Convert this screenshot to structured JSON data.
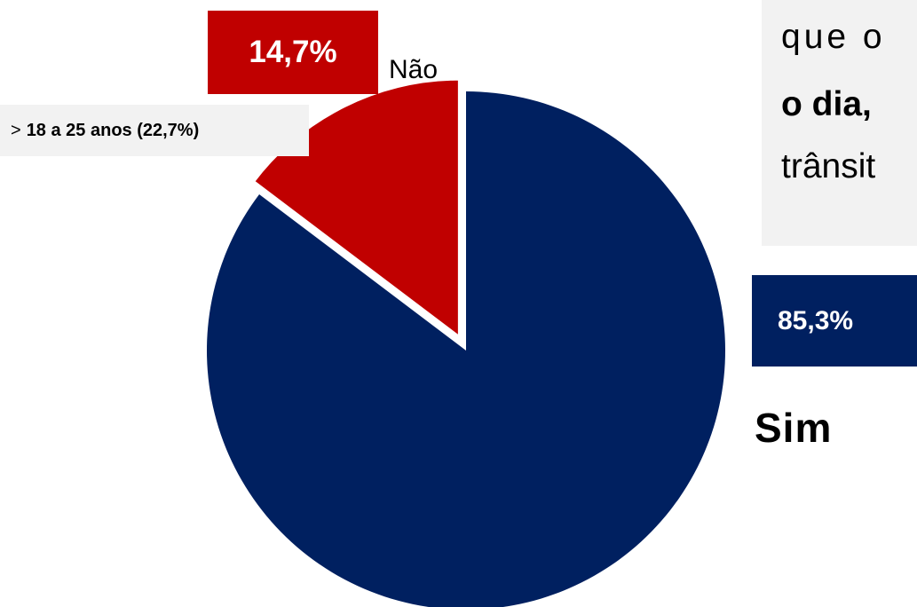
{
  "chart_data": {
    "type": "pie",
    "title": "",
    "slices": [
      {
        "name": "Sim",
        "value": 85.3,
        "label": "85,3%",
        "color": "#002060"
      },
      {
        "name": "Não",
        "value": 14.7,
        "label": "14,7%",
        "color": "#c00000",
        "exploded": true
      }
    ],
    "annotation": {
      "arrow": ">",
      "text": "18 a 25 anos (22,7%)"
    }
  },
  "text_box": {
    "line1": "que o",
    "line2": "o dia,",
    "line3": "trânsit"
  }
}
